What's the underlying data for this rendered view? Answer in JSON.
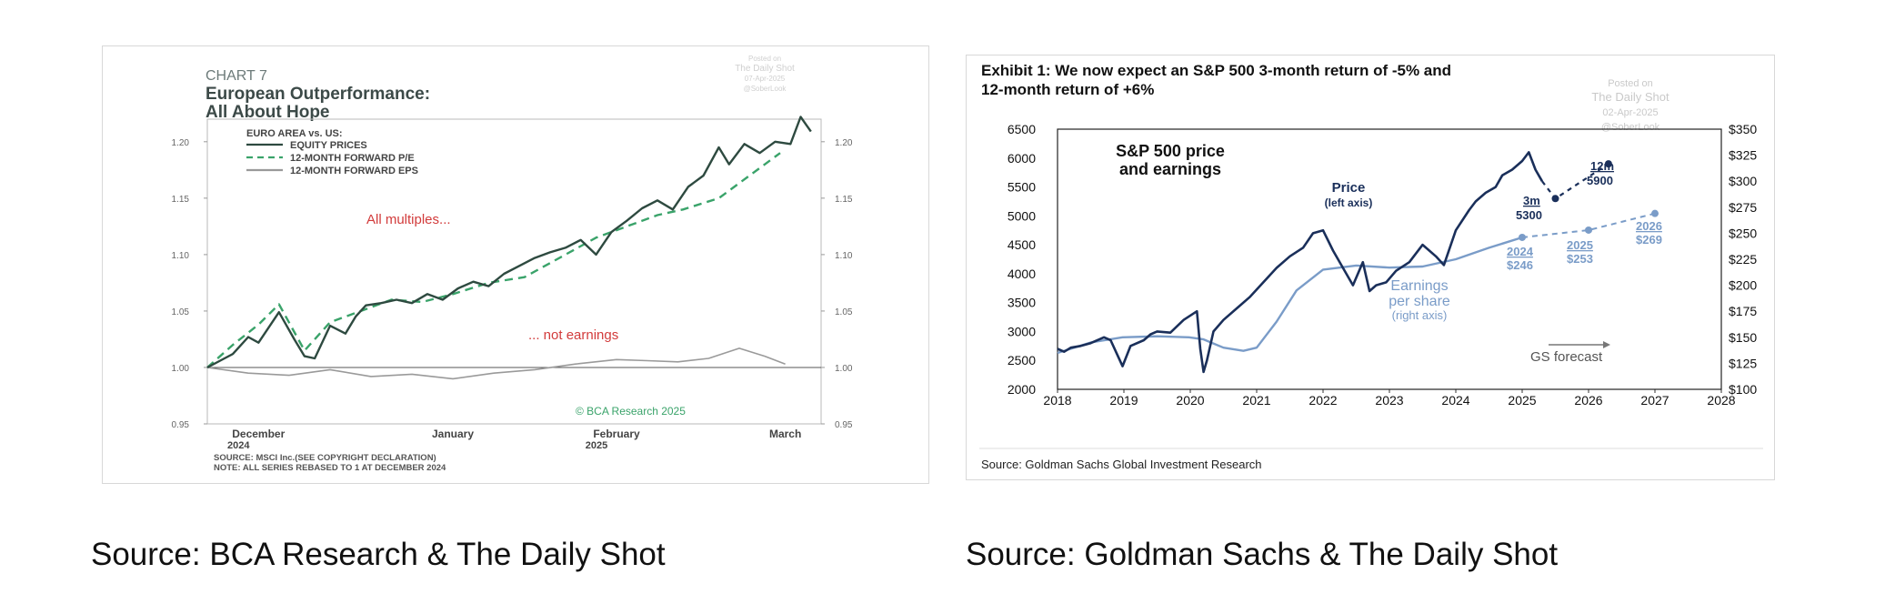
{
  "captions": {
    "left": "Source: BCA Research & The Daily Shot",
    "right": "Source: Goldman Sachs & The Daily Shot"
  },
  "colors": {
    "bca_equity": "#2e4a40",
    "bca_pe": "#3aa36a",
    "bca_eps": "#9a9a9a",
    "bca_red": "#d23b3b",
    "gs_price": "#1a2f5a",
    "gs_eps": "#7a9cc8"
  },
  "chart_data": [
    {
      "type": "line",
      "chart_label": "CHART 7",
      "title": "European Outperformance: All About Hope",
      "title_lines": [
        "European Outperformance:",
        "All About Hope"
      ],
      "watermark": [
        "Posted on",
        "The Daily Shot",
        "07-Apr-2025",
        "@SoberLook"
      ],
      "legend_title": "EURO AREA vs. US:",
      "annotations": [
        "All multiples...",
        "... not earnings"
      ],
      "credit": "© BCA Research 2025",
      "source_note": [
        "SOURCE: MSCI Inc.(SEE COPYRIGHT DECLARATION)",
        "NOTE: ALL SERIES REBASED TO 1 AT DECEMBER 2024"
      ],
      "x_tick_labels": [
        {
          "label": "December",
          "sub": "2024",
          "pos": 0.1
        },
        {
          "label": "January",
          "sub": "",
          "pos": 0.48
        },
        {
          "label": "February",
          "sub": "2025",
          "pos": 0.8
        },
        {
          "label": "March",
          "sub": "",
          "pos": 1.13
        }
      ],
      "xlim": [
        0,
        1.2
      ],
      "ylim": [
        0.95,
        1.22
      ],
      "y_ticks": [
        0.95,
        1.0,
        1.05,
        1.1,
        1.15,
        1.2
      ],
      "y_tick_labels": [
        "0.95",
        "1.00",
        "1.05",
        "1.10",
        "1.15",
        "1.20"
      ],
      "series": [
        {
          "name": "EQUITY PRICES",
          "x": [
            0,
            0.05,
            0.08,
            0.1,
            0.14,
            0.17,
            0.19,
            0.21,
            0.24,
            0.27,
            0.29,
            0.31,
            0.34,
            0.37,
            0.4,
            0.43,
            0.46,
            0.49,
            0.52,
            0.55,
            0.58,
            0.61,
            0.64,
            0.67,
            0.7,
            0.73,
            0.76,
            0.79,
            0.82,
            0.85,
            0.88,
            0.91,
            0.94,
            0.97,
            1.0,
            1.02,
            1.05,
            1.08,
            1.11,
            1.14,
            1.16,
            1.18
          ],
          "y": [
            1.0,
            1.012,
            1.027,
            1.022,
            1.049,
            1.025,
            1.01,
            1.008,
            1.037,
            1.03,
            1.045,
            1.055,
            1.057,
            1.06,
            1.057,
            1.065,
            1.06,
            1.07,
            1.076,
            1.072,
            1.083,
            1.09,
            1.097,
            1.102,
            1.106,
            1.113,
            1.1,
            1.12,
            1.13,
            1.141,
            1.148,
            1.14,
            1.16,
            1.17,
            1.195,
            1.18,
            1.198,
            1.19,
            1.2,
            1.198,
            1.222,
            1.209
          ]
        },
        {
          "name": "12-MONTH FORWARD P/E",
          "x": [
            0,
            0.05,
            0.1,
            0.14,
            0.19,
            0.24,
            0.3,
            0.36,
            0.42,
            0.48,
            0.55,
            0.62,
            0.7,
            0.76,
            0.82,
            0.88,
            0.93,
            1.0,
            1.06,
            1.12
          ],
          "y": [
            1.0,
            1.02,
            1.038,
            1.056,
            1.015,
            1.04,
            1.05,
            1.06,
            1.058,
            1.065,
            1.075,
            1.08,
            1.1,
            1.115,
            1.125,
            1.135,
            1.14,
            1.15,
            1.17,
            1.19
          ]
        },
        {
          "name": "12-MONTH FORWARD EPS",
          "x": [
            0,
            0.08,
            0.16,
            0.24,
            0.32,
            0.4,
            0.48,
            0.56,
            0.64,
            0.72,
            0.8,
            0.86,
            0.92,
            0.98,
            1.04,
            1.09,
            1.13
          ],
          "y": [
            1.0,
            0.995,
            0.993,
            0.998,
            0.992,
            0.994,
            0.99,
            0.995,
            0.998,
            1.003,
            1.007,
            1.006,
            1.005,
            1.008,
            1.017,
            1.01,
            1.003
          ]
        }
      ]
    },
    {
      "type": "line",
      "title": "Exhibit 1: We now expect an S&P 500 3-month return of -5% and 12-month return of +6%",
      "title_lines": [
        "Exhibit 1: We now expect an S&P 500 3-month return of -5% and",
        "12-month return of +6%"
      ],
      "watermark": [
        "Posted on",
        "The Daily Shot",
        "02-Apr-2025",
        "@SoberLook"
      ],
      "inner_title": [
        "S&P 500 price",
        "and earnings"
      ],
      "source": "Source: Goldman Sachs Global Investment Research",
      "x_ticks": [
        2018,
        2019,
        2020,
        2021,
        2022,
        2023,
        2024,
        2025,
        2026,
        2027,
        2028
      ],
      "xlim": [
        2018,
        2028
      ],
      "ylim_left": [
        2000,
        6500
      ],
      "y_ticks_left": [
        2000,
        2500,
        3000,
        3500,
        4000,
        4500,
        5000,
        5500,
        6000,
        6500
      ],
      "ylim_right": [
        100,
        350
      ],
      "y_ticks_right": [
        100,
        125,
        150,
        175,
        200,
        225,
        250,
        275,
        300,
        325,
        350
      ],
      "y_tick_labels_right": [
        "$100",
        "$125",
        "$150",
        "$175",
        "$200",
        "$225",
        "$250",
        "$275",
        "$300",
        "$325",
        "$350"
      ],
      "price_label": [
        "Price",
        "(left axis)"
      ],
      "eps_label": [
        "Earnings",
        "per share",
        "(right axis)"
      ],
      "gs_forecast_label": "GS forecast",
      "series": [
        {
          "name": "S&P 500 price (left axis)",
          "x": [
            2018.0,
            2018.1,
            2018.2,
            2018.35,
            2018.5,
            2018.7,
            2018.8,
            2018.9,
            2018.98,
            2019.1,
            2019.3,
            2019.4,
            2019.5,
            2019.7,
            2019.9,
            2020.1,
            2020.15,
            2020.2,
            2020.25,
            2020.35,
            2020.5,
            2020.7,
            2020.9,
            2021.1,
            2021.3,
            2021.5,
            2021.7,
            2021.85,
            2022.0,
            2022.15,
            2022.3,
            2022.45,
            2022.6,
            2022.7,
            2022.8,
            2022.95,
            2023.1,
            2023.3,
            2023.5,
            2023.7,
            2023.82,
            2024.0,
            2024.2,
            2024.3,
            2024.45,
            2024.6,
            2024.7,
            2024.85,
            2025.0,
            2025.1,
            2025.2,
            2025.3
          ],
          "y": [
            2700,
            2650,
            2720,
            2750,
            2800,
            2900,
            2850,
            2600,
            2400,
            2750,
            2850,
            2950,
            3000,
            2980,
            3200,
            3350,
            2700,
            2300,
            2500,
            3000,
            3200,
            3400,
            3600,
            3850,
            4100,
            4300,
            4450,
            4700,
            4750,
            4400,
            4100,
            3800,
            4200,
            3700,
            3800,
            3850,
            4050,
            4200,
            4500,
            4300,
            4150,
            4750,
            5100,
            5250,
            5400,
            5500,
            5700,
            5800,
            5950,
            6100,
            5800,
            5600
          ]
        },
        {
          "name": "Price forecast",
          "x": [
            2025.3,
            2025.5,
            2026.3
          ],
          "y": [
            5600,
            5300,
            5900
          ],
          "labels": [
            {
              "top": "3m",
              "bottom": "5300"
            },
            {
              "top": "12m",
              "bottom": "5900"
            }
          ]
        },
        {
          "name": "Earnings per share (right axis)",
          "x": [
            2018.0,
            2018.5,
            2018.98,
            2019.5,
            2019.98,
            2020.2,
            2020.5,
            2020.8,
            2021.0,
            2021.3,
            2021.6,
            2022.0,
            2022.5,
            2023.0,
            2023.5,
            2024.0,
            2024.5,
            2025.0
          ],
          "y": [
            135,
            145,
            150,
            151,
            150,
            148,
            140,
            137,
            140,
            165,
            195,
            215,
            219,
            217,
            218,
            225,
            236,
            246
          ]
        },
        {
          "name": "EPS forecast",
          "x": [
            2025.0,
            2026.0,
            2027.0
          ],
          "y": [
            246,
            253,
            269
          ],
          "labels": [
            {
              "top": "2024",
              "bottom": "$246"
            },
            {
              "top": "2025",
              "bottom": "$253"
            },
            {
              "top": "2026",
              "bottom": "$269"
            }
          ]
        }
      ]
    }
  ]
}
